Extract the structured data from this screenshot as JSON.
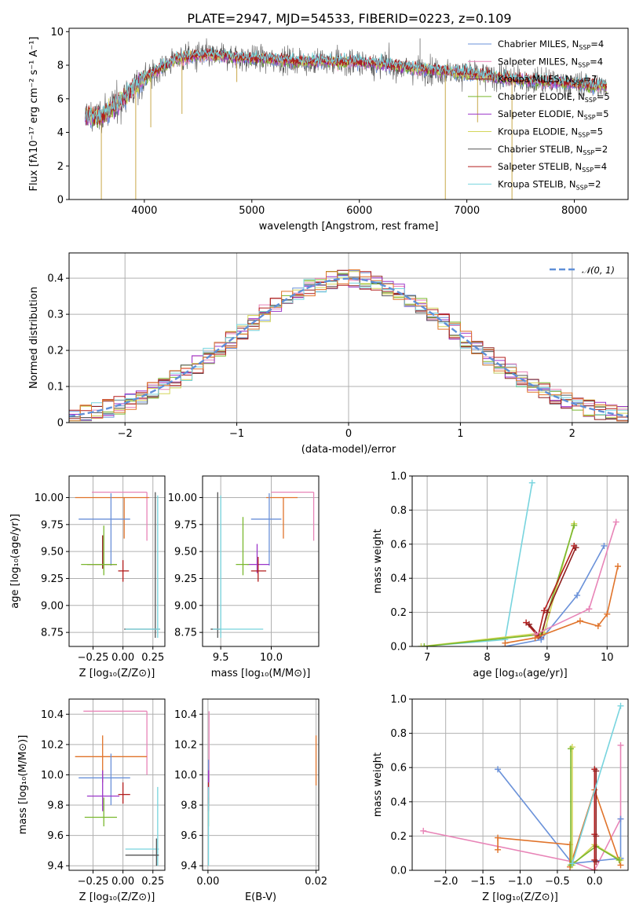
{
  "title": "PLATE=2947, MJD=54533, FIBERID=0223, z=0.109",
  "colors": {
    "chabrier_miles": "#6a91d9",
    "salpeter_miles": "#e884b7",
    "kroupa_miles": "#8e1f1f",
    "chabrier_elodie": "#7ab82e",
    "salpeter_elodie": "#9b35c9",
    "kroupa_elodie": "#d4d65a",
    "chabrier_stelib": "#555555",
    "salpeter_stelib": "#b31d1d",
    "kroupa_stelib": "#77d4de",
    "orange": "#e0732a",
    "gauss": "#5f8fd8",
    "grid": "#b0b0b0"
  },
  "chart_data": [
    {
      "type": "line",
      "name": "spectrum",
      "xlabel": "wavelength [Angstrom, rest frame]",
      "ylabel": "Flux [fλ10⁻¹⁷ erg cm⁻² s⁻¹ A⁻¹]",
      "xlim": [
        3300,
        8500
      ],
      "ylim": [
        0,
        10.2
      ],
      "xticks": [
        4000,
        5000,
        6000,
        7000,
        8000
      ],
      "yticks": [
        0,
        2,
        4,
        6,
        8,
        10
      ],
      "grid": false,
      "legend_placement": "upper-right",
      "legend": [
        {
          "label": "Chabrier MILES, N",
          "sub": "SSP",
          "eq": "=4",
          "color": "#6a91d9"
        },
        {
          "label": "Salpeter MILES, N",
          "sub": "SSP",
          "eq": "=4",
          "color": "#e884b7"
        },
        {
          "label": "Kroupa MILES, N",
          "sub": "SSP",
          "eq": "=7",
          "color": "#8e1f1f"
        },
        {
          "label": "Chabrier ELODIE, N",
          "sub": "SSP",
          "eq": "=5",
          "color": "#7ab82e"
        },
        {
          "label": "Salpeter ELODIE, N",
          "sub": "SSP",
          "eq": "=5",
          "color": "#9b35c9"
        },
        {
          "label": "Kroupa ELODIE, N",
          "sub": "SSP",
          "eq": "=5",
          "color": "#d4d65a"
        },
        {
          "label": "Chabrier STELIB, N",
          "sub": "SSP",
          "eq": "=2",
          "color": "#555555"
        },
        {
          "label": "Salpeter STELIB, N",
          "sub": "SSP",
          "eq": "=4",
          "color": "#b31d1d"
        },
        {
          "label": "Kroupa STELIB, N",
          "sub": "SSP",
          "eq": "=2",
          "color": "#77d4de"
        }
      ],
      "continuum": [
        [
          3450,
          5.0
        ],
        [
          3600,
          4.9
        ],
        [
          3800,
          6.0
        ],
        [
          4000,
          7.2
        ],
        [
          4300,
          8.4
        ],
        [
          4600,
          8.6
        ],
        [
          5000,
          8.4
        ],
        [
          5500,
          8.2
        ],
        [
          6000,
          8.2
        ],
        [
          6500,
          7.8
        ],
        [
          7000,
          7.5
        ],
        [
          7500,
          7.1
        ],
        [
          8000,
          6.9
        ],
        [
          8300,
          6.7
        ]
      ],
      "data_range": [
        3450,
        8300
      ],
      "dropouts": [
        [
          3600,
          0
        ],
        [
          3920,
          0
        ],
        [
          4060,
          4.3
        ],
        [
          4350,
          5.1
        ],
        [
          4860,
          7.0
        ],
        [
          6800,
          0
        ],
        [
          7420,
          0
        ],
        [
          6565,
          9.6
        ],
        [
          7100,
          4.6
        ]
      ]
    },
    {
      "type": "histogram",
      "name": "residuals",
      "xlabel": "(data-model)/error",
      "ylabel": "Normed distribution",
      "xlim": [
        -2.5,
        2.5
      ],
      "ylim": [
        0,
        0.47
      ],
      "xticks": [
        -2,
        -1,
        0,
        1,
        2
      ],
      "yticks": [
        0.0,
        0.1,
        0.2,
        0.3,
        0.4
      ],
      "grid": true,
      "bin_width": 0.1,
      "gauss_label": "𝒩(0, 1)",
      "legend_placement": "upper-right"
    },
    {
      "type": "errorbar",
      "name": "age-vs-Z",
      "xlabel": "Z [log₁₀(Z/Z⊙)]",
      "ylabel": "age  [log₁₀(age/yr)]",
      "xlim": [
        -0.45,
        0.35
      ],
      "ylim": [
        8.62,
        10.2
      ],
      "xticks": [
        -0.25,
        0.0,
        0.25
      ],
      "xticklabels": [
        "−0.25",
        "0.00",
        "0.25"
      ],
      "yticks": [
        8.75,
        9.0,
        9.25,
        9.5,
        9.75,
        10.0
      ],
      "yticklabels": [
        "8.75",
        "9.00",
        "9.25",
        "9.50",
        "9.75",
        "10.00"
      ],
      "points": [
        {
          "x": 0.2,
          "xlo": -0.26,
          "xhi": 0.2,
          "y": 10.05,
          "ylo": 9.6,
          "yhi": 10.05,
          "color": "#e884b7"
        },
        {
          "x": 0.01,
          "xlo": -0.4,
          "xhi": 0.22,
          "y": 10.0,
          "ylo": 9.62,
          "yhi": 10.0,
          "color": "#e0732a"
        },
        {
          "x": -0.1,
          "xlo": -0.37,
          "xhi": 0.06,
          "y": 9.8,
          "ylo": 9.37,
          "yhi": 10.04,
          "color": "#6a91d9"
        },
        {
          "x": -0.17,
          "xlo": -0.3,
          "xhi": -0.05,
          "y": 9.38,
          "ylo": 9.34,
          "yhi": 9.65,
          "color": "#8e1f1f"
        },
        {
          "x": -0.16,
          "xlo": -0.35,
          "xhi": -0.05,
          "y": 9.38,
          "ylo": 9.28,
          "yhi": 9.74,
          "color": "#7ab82e"
        },
        {
          "x": 0.0,
          "xlo": -0.04,
          "xhi": 0.05,
          "y": 9.32,
          "ylo": 9.22,
          "yhi": 9.42,
          "color": "#b31d1d"
        },
        {
          "x": 0.27,
          "xlo": 0.01,
          "xhi": 0.31,
          "y": 8.78,
          "ylo": 8.7,
          "yhi": 10.05,
          "color": "#555555"
        },
        {
          "x": 0.29,
          "xlo": 0.02,
          "xhi": 0.31,
          "y": 8.78,
          "ylo": 8.7,
          "yhi": 10.02,
          "color": "#77d4de"
        }
      ]
    },
    {
      "type": "errorbar",
      "name": "age-vs-mass",
      "xlabel": "mass [log₁₀(M/M⊙)]",
      "xlim": [
        9.32,
        10.47
      ],
      "ylim": [
        8.62,
        10.2
      ],
      "xticks": [
        9.5,
        10.0
      ],
      "xticklabels": [
        "9.5",
        "10.0"
      ],
      "yticks": [
        8.75,
        9.0,
        9.25,
        9.5,
        9.75,
        10.0
      ],
      "yticklabels": [
        "8.75",
        "9.00",
        "9.25",
        "9.50",
        "9.75",
        "10.00"
      ],
      "points": [
        {
          "x": 10.42,
          "xlo": 10.0,
          "xhi": 10.42,
          "y": 10.05,
          "ylo": 9.6,
          "yhi": 10.05,
          "color": "#e884b7"
        },
        {
          "x": 10.12,
          "xlo": 9.95,
          "xhi": 10.26,
          "y": 10.0,
          "ylo": 9.62,
          "yhi": 10.0,
          "color": "#e0732a"
        },
        {
          "x": 9.98,
          "xlo": 9.8,
          "xhi": 10.1,
          "y": 9.8,
          "ylo": 9.37,
          "yhi": 10.04,
          "color": "#6a91d9"
        },
        {
          "x": 9.86,
          "xlo": 9.76,
          "xhi": 9.98,
          "y": 9.38,
          "ylo": 9.3,
          "yhi": 9.57,
          "color": "#9b35c9"
        },
        {
          "x": 9.72,
          "xlo": 9.65,
          "xhi": 9.78,
          "y": 9.38,
          "ylo": 9.28,
          "yhi": 9.82,
          "color": "#7ab82e"
        },
        {
          "x": 9.87,
          "xlo": 9.8,
          "xhi": 9.95,
          "y": 9.32,
          "ylo": 9.22,
          "yhi": 9.45,
          "color": "#b31d1d"
        },
        {
          "x": 9.47,
          "xlo": 9.4,
          "xhi": 9.5,
          "y": 8.78,
          "ylo": 8.7,
          "yhi": 10.05,
          "color": "#555555"
        },
        {
          "x": 9.5,
          "xlo": 9.42,
          "xhi": 9.92,
          "y": 8.78,
          "ylo": 8.7,
          "yhi": 10.02,
          "color": "#77d4de"
        }
      ]
    },
    {
      "type": "line",
      "name": "mass-weight-vs-age",
      "xlabel": "age  [log₁₀(age/yr)]",
      "ylabel": "mass weight",
      "xlim": [
        6.75,
        10.35
      ],
      "ylim": [
        0,
        1.0
      ],
      "xticks": [
        7,
        8,
        9,
        10
      ],
      "yticks": [
        0.0,
        0.2,
        0.4,
        0.6,
        0.8,
        1.0
      ],
      "yticklabels": [
        "0.0",
        "0.2",
        "0.4",
        "0.6",
        "0.8",
        "1.0"
      ],
      "grid": true,
      "series": [
        {
          "color": "#77d4de",
          "points": [
            [
              6.9,
              0.0
            ],
            [
              8.3,
              0.04
            ],
            [
              8.75,
              0.96
            ]
          ]
        },
        {
          "color": "#d4d65a",
          "points": [
            [
              6.9,
              0.0
            ],
            [
              8.95,
              0.08
            ],
            [
              9.45,
              0.72
            ]
          ]
        },
        {
          "color": "#7ab82e",
          "points": [
            [
              6.95,
              0.0
            ],
            [
              8.9,
              0.07
            ],
            [
              9.45,
              0.71
            ]
          ]
        },
        {
          "color": "#b31d1d",
          "points": [
            [
              8.65,
              0.14
            ],
            [
              8.85,
              0.06
            ],
            [
              8.95,
              0.21
            ],
            [
              9.45,
              0.59
            ]
          ]
        },
        {
          "color": "#8e1f1f",
          "points": [
            [
              8.7,
              0.13
            ],
            [
              8.9,
              0.05
            ],
            [
              9.0,
              0.2
            ],
            [
              9.48,
              0.58
            ]
          ]
        },
        {
          "color": "#6a91d9",
          "points": [
            [
              8.3,
              0.0
            ],
            [
              8.9,
              0.04
            ],
            [
              9.5,
              0.3
            ],
            [
              9.95,
              0.59
            ]
          ]
        },
        {
          "color": "#e884b7",
          "points": [
            [
              8.8,
              0.07
            ],
            [
              9.7,
              0.22
            ],
            [
              10.15,
              0.73
            ]
          ]
        },
        {
          "color": "#e0732a",
          "points": [
            [
              8.3,
              0.02
            ],
            [
              8.8,
              0.05
            ],
            [
              9.55,
              0.15
            ],
            [
              9.85,
              0.12
            ],
            [
              10.0,
              0.19
            ],
            [
              10.18,
              0.47
            ]
          ]
        }
      ]
    },
    {
      "type": "errorbar",
      "name": "mass-vs-Z",
      "xlabel": "Z [log₁₀(Z/Z⊙)]",
      "ylabel": "mass [log₁₀(M/M⊙)]",
      "xlim": [
        -0.45,
        0.35
      ],
      "ylim": [
        9.37,
        10.5
      ],
      "xticks": [
        -0.25,
        0.0,
        0.25
      ],
      "xticklabels": [
        "−0.25",
        "0.00",
        "0.25"
      ],
      "yticks": [
        9.4,
        9.6,
        9.8,
        10.0,
        10.2,
        10.4
      ],
      "yticklabels": [
        "9.4",
        "9.6",
        "9.8",
        "10.0",
        "10.2",
        "10.4"
      ],
      "points": [
        {
          "x": 0.2,
          "xlo": -0.33,
          "xhi": 0.2,
          "y": 10.42,
          "ylo": 10.0,
          "yhi": 10.42,
          "color": "#e884b7"
        },
        {
          "x": -0.17,
          "xlo": -0.4,
          "xhi": 0.2,
          "y": 10.12,
          "ylo": 9.95,
          "yhi": 10.26,
          "color": "#e0732a"
        },
        {
          "x": -0.1,
          "xlo": -0.37,
          "xhi": 0.06,
          "y": 9.98,
          "ylo": 9.8,
          "yhi": 10.14,
          "color": "#6a91d9"
        },
        {
          "x": -0.17,
          "xlo": -0.3,
          "xhi": -0.03,
          "y": 9.86,
          "ylo": 9.76,
          "yhi": 10.03,
          "color": "#9b35c9"
        },
        {
          "x": -0.16,
          "xlo": -0.32,
          "xhi": -0.05,
          "y": 9.72,
          "ylo": 9.66,
          "yhi": 9.85,
          "color": "#7ab82e"
        },
        {
          "x": 0.0,
          "xlo": -0.04,
          "xhi": 0.06,
          "y": 9.87,
          "ylo": 9.81,
          "yhi": 9.95,
          "color": "#b31d1d"
        },
        {
          "x": 0.29,
          "xlo": 0.02,
          "xhi": 0.3,
          "y": 9.51,
          "ylo": 9.4,
          "yhi": 9.92,
          "color": "#77d4de"
        },
        {
          "x": 0.28,
          "xlo": 0.02,
          "xhi": 0.3,
          "y": 9.47,
          "ylo": 9.4,
          "yhi": 9.58,
          "color": "#555555"
        }
      ]
    },
    {
      "type": "errorbar",
      "name": "mass-vs-EBV",
      "xlabel": "E(B-V)",
      "xlim": [
        -0.001,
        0.0205
      ],
      "ylim": [
        9.37,
        10.5
      ],
      "xticks": [
        0.0,
        0.02
      ],
      "xticklabels": [
        "0.00",
        "0.02"
      ],
      "yticks": [
        9.4,
        9.6,
        9.8,
        10.0,
        10.2,
        10.4
      ],
      "yticklabels": [
        "9.4",
        "9.6",
        "9.8",
        "10.0",
        "10.2",
        "10.4"
      ],
      "points": [
        {
          "x": 0.0002,
          "xlo": 0.0002,
          "xhi": 0.0002,
          "y": 10.42,
          "ylo": 9.95,
          "yhi": 10.42,
          "color": "#e884b7"
        },
        {
          "x": 0.02,
          "xlo": 0.02,
          "xhi": 0.02,
          "y": 10.12,
          "ylo": 9.93,
          "yhi": 10.26,
          "color": "#e0732a"
        },
        {
          "x": 0.0001,
          "xlo": 0.0001,
          "xhi": 0.0001,
          "y": 9.98,
          "ylo": 9.8,
          "yhi": 10.1,
          "color": "#6a91d9"
        },
        {
          "x": 0.0001,
          "xlo": 0.0001,
          "xhi": 0.0001,
          "y": 9.86,
          "ylo": 9.76,
          "yhi": 10.03,
          "color": "#9b35c9"
        },
        {
          "x": 0.0001,
          "xlo": 0.0001,
          "xhi": 0.0001,
          "y": 9.72,
          "ylo": 9.66,
          "yhi": 9.85,
          "color": "#7ab82e"
        },
        {
          "x": 0.0001,
          "xlo": 0.0001,
          "xhi": 0.0001,
          "y": 9.87,
          "ylo": 9.81,
          "yhi": 9.95,
          "color": "#b31d1d"
        },
        {
          "x": 0.0001,
          "xlo": 0.0001,
          "xhi": 0.0001,
          "y": 9.51,
          "ylo": 9.4,
          "yhi": 9.92,
          "color": "#77d4de"
        }
      ]
    },
    {
      "type": "line",
      "name": "mass-weight-vs-Z",
      "xlabel": "Z [log₁₀(Z/Z⊙)]",
      "ylabel": "mass weight",
      "xlim": [
        -2.45,
        0.45
      ],
      "ylim": [
        0,
        1.0
      ],
      "xticks": [
        -2.0,
        -1.5,
        -1.0,
        -0.5,
        0.0
      ],
      "xticklabels": [
        "−2.0",
        "−1.5",
        "−1.0",
        "−0.5",
        "0.0"
      ],
      "yticks": [
        0.0,
        0.2,
        0.4,
        0.6,
        0.8,
        1.0
      ],
      "yticklabels": [
        "0.0",
        "0.2",
        "0.4",
        "0.6",
        "0.8",
        "1.0"
      ],
      "grid": true,
      "series": [
        {
          "color": "#e884b7",
          "points": [
            [
              -2.3,
              0.23
            ],
            [
              -0.3,
              0.05
            ],
            [
              0.0,
              0.0
            ],
            [
              0.35,
              0.3
            ],
            [
              0.35,
              0.73
            ]
          ]
        },
        {
          "color": "#6a91d9",
          "points": [
            [
              -1.3,
              0.59
            ],
            [
              -0.3,
              0.04
            ],
            [
              0.35,
              0.07
            ],
            [
              0.35,
              0.3
            ]
          ]
        },
        {
          "color": "#e0732a",
          "points": [
            [
              -1.3,
              0.12
            ],
            [
              -1.3,
              0.19
            ],
            [
              -0.33,
              0.15
            ],
            [
              -0.33,
              0.02
            ],
            [
              0.0,
              0.47
            ],
            [
              0.35,
              0.03
            ]
          ]
        },
        {
          "color": "#d4d65a",
          "points": [
            [
              -0.3,
              0.72
            ],
            [
              -0.3,
              0.03
            ],
            [
              0.0,
              0.15
            ],
            [
              0.35,
              0.06
            ]
          ]
        },
        {
          "color": "#7ab82e",
          "points": [
            [
              -0.32,
              0.71
            ],
            [
              -0.32,
              0.03
            ],
            [
              0.02,
              0.14
            ],
            [
              0.33,
              0.06
            ]
          ]
        },
        {
          "color": "#b31d1d",
          "points": [
            [
              0.0,
              0.59
            ],
            [
              0.0,
              0.21
            ],
            [
              0.0,
              0.06
            ],
            [
              0.0,
              0.0
            ]
          ]
        },
        {
          "color": "#8e1f1f",
          "points": [
            [
              0.02,
              0.58
            ],
            [
              0.02,
              0.2
            ],
            [
              0.02,
              0.05
            ]
          ]
        },
        {
          "color": "#77d4de",
          "points": [
            [
              -0.3,
              0.04
            ],
            [
              0.35,
              0.96
            ]
          ]
        }
      ]
    }
  ]
}
